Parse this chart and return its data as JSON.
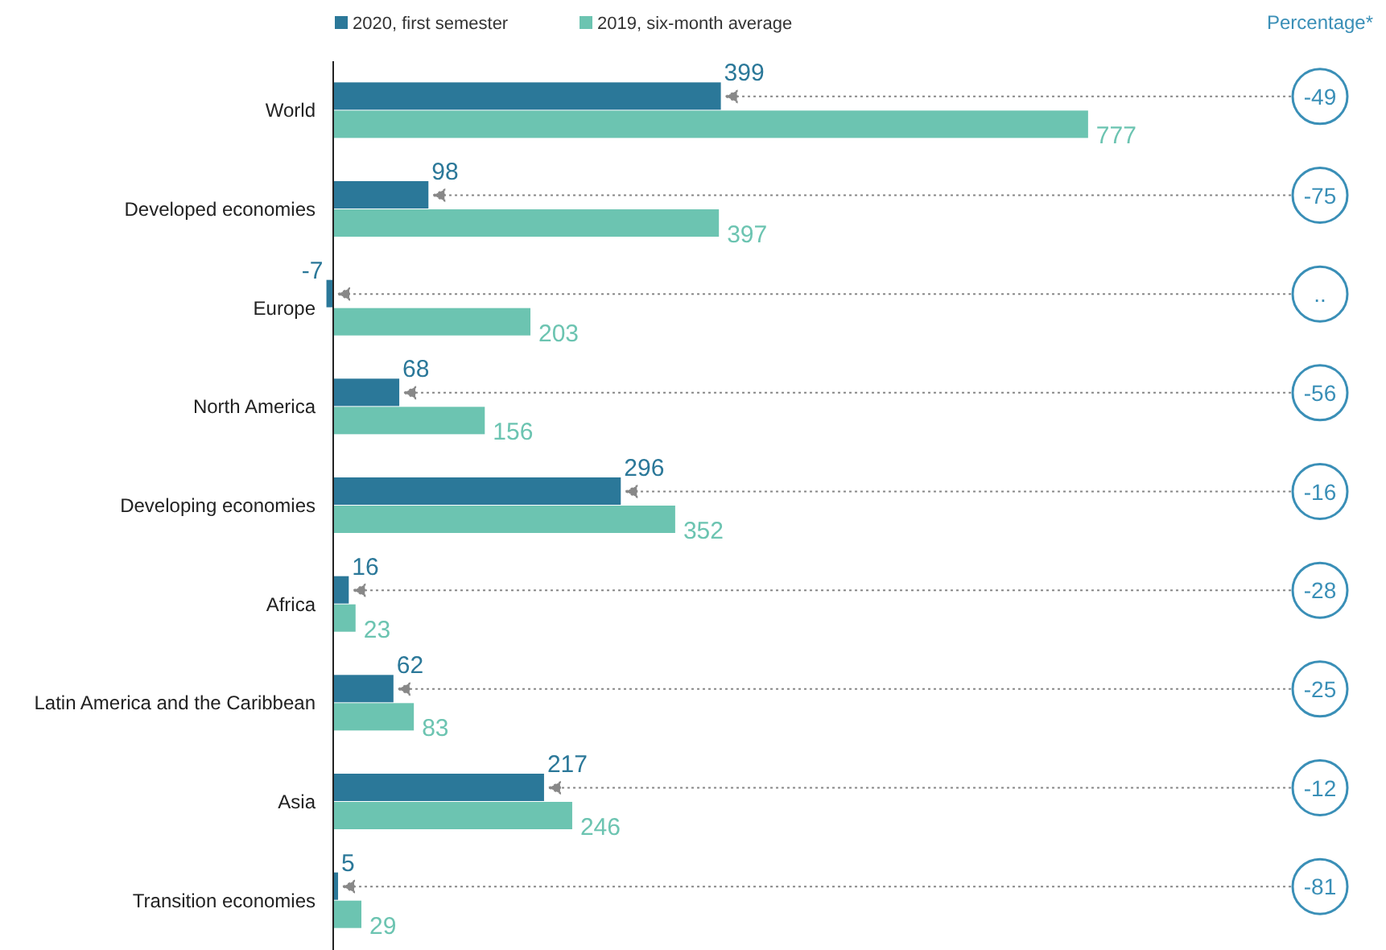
{
  "chart_data": {
    "type": "bar",
    "orientation": "horizontal",
    "categories": [
      "World",
      "Developed economies",
      "Europe",
      "North America",
      "Developing economies",
      "Africa",
      "Latin America and the Caribbean",
      "Asia",
      "Transition economies"
    ],
    "series": [
      {
        "name": "2020, first semester",
        "color": "#2b7899",
        "values": [
          399,
          98,
          -7,
          68,
          296,
          16,
          62,
          217,
          5
        ]
      },
      {
        "name": "2019, six-month average",
        "color": "#6cc4b1",
        "values": [
          777,
          397,
          203,
          156,
          352,
          23,
          83,
          246,
          29
        ]
      }
    ],
    "data_labels": true,
    "legend": "top left",
    "annotations": [
      "Percentage*",
      "-49",
      "-75",
      "..",
      "-56",
      "-16",
      "-28",
      "-25",
      "-12",
      "-81"
    ]
  }
}
